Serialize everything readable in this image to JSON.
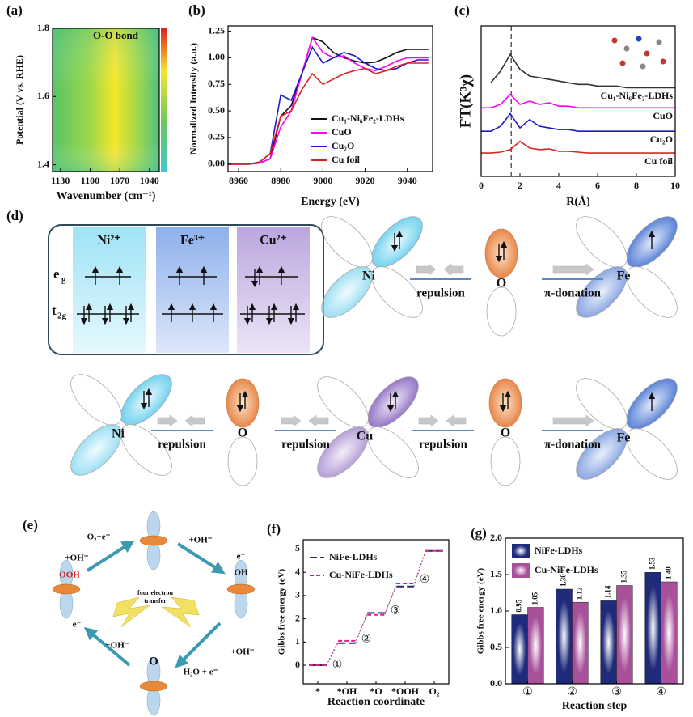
{
  "panel_labels": [
    "(a)",
    "(b)",
    "(c)",
    "(d)",
    "(e)",
    "(f)",
    "(g)"
  ],
  "chart_data": [
    {
      "type": "heatmap",
      "annotation": "O-O bond",
      "xlabel": "Wavenumber (cm⁻¹)",
      "ylabel": "Potential (V vs. RHE)",
      "xlim": [
        1138,
        1030
      ],
      "xticks": [
        1130,
        1100,
        1070,
        1040
      ],
      "ylim": [
        1.38,
        1.8
      ],
      "yticks": [
        1.4,
        1.6,
        1.8
      ]
    },
    {
      "type": "line",
      "xlabel": "Energy (eV)",
      "ylabel": "Normalized Intensity (a.u.)",
      "legend": "lower right",
      "xlim": [
        8955,
        9052
      ],
      "xticks": [
        8960,
        8980,
        9000,
        9020,
        9040
      ],
      "ylim": [
        -0.07,
        1.3
      ],
      "yticks": [
        {
          "value": 0,
          "label": "0.00"
        },
        0.25,
        {
          "value": 0.5,
          "label": "0.50"
        },
        0.75,
        {
          "value": 1,
          "label": "1.00"
        },
        1.25
      ],
      "x": [
        8955,
        8960,
        8965,
        8970,
        8975,
        8980,
        8985,
        8990,
        8995,
        9000,
        9005,
        9010,
        9015,
        9020,
        9025,
        9030,
        9035,
        9040,
        9045,
        9050
      ],
      "series": [
        {
          "name": "Cu₁-Ni₆Fe₂-LDHs",
          "color": "#111111",
          "values": [
            0,
            0,
            0,
            0.01,
            0.05,
            0.45,
            0.55,
            0.85,
            1.19,
            1.15,
            1.05,
            1.0,
            0.97,
            0.95,
            0.96,
            1.0,
            1.05,
            1.08,
            1.08,
            1.08
          ]
        },
        {
          "name": "CuO",
          "color": "#ff00ff",
          "values": [
            0,
            0,
            0,
            0.01,
            0.05,
            0.35,
            0.5,
            0.85,
            1.19,
            1.05,
            1.0,
            1.02,
            0.95,
            0.9,
            0.88,
            0.92,
            0.97,
            1.0,
            1.0,
            1.0
          ]
        },
        {
          "name": "Cu₂O",
          "color": "#1a1acc",
          "values": [
            0,
            0,
            0,
            0.02,
            0.1,
            0.65,
            0.6,
            0.85,
            1.1,
            0.95,
            1.0,
            1.05,
            1.02,
            0.95,
            0.9,
            0.88,
            0.9,
            0.95,
            0.98,
            0.98
          ]
        },
        {
          "name": "Cu foil",
          "color": "#e02020",
          "values": [
            0,
            0,
            0,
            0.02,
            0.1,
            0.45,
            0.5,
            0.7,
            0.85,
            0.75,
            0.8,
            0.85,
            0.88,
            0.9,
            0.85,
            0.88,
            0.92,
            0.95,
            0.95,
            0.95
          ]
        }
      ]
    },
    {
      "type": "line",
      "xlabel": "R(Å)",
      "ylabel": "FT(K³χ)",
      "legend": "inline",
      "xlim": [
        0,
        10
      ],
      "xticks": [
        0,
        2,
        4,
        6,
        8,
        10
      ],
      "ylim": [
        0,
        9
      ],
      "vlines": [
        1.55
      ],
      "x": [
        0,
        0.5,
        1,
        1.5,
        2,
        2.5,
        3,
        3.5,
        4,
        4.5,
        5,
        5.5,
        6,
        6.5,
        7,
        7.5,
        8,
        8.5,
        9,
        9.5,
        10
      ],
      "series": [
        {
          "name": "Cu₁-Ni₆Fe₂-LDHs",
          "color": "#333333",
          "values": [
            null,
            5.6,
            6.3,
            7.3,
            6.4,
            6.0,
            5.9,
            5.8,
            5.7,
            5.6,
            5.5,
            5.5,
            5.4,
            5.4,
            5.4,
            5.3,
            5.3,
            5.3,
            5.3,
            5.3,
            5.3
          ]
        },
        {
          "name": "CuO",
          "color": "#ff00ff",
          "values": [
            4.1,
            4.1,
            4.3,
            4.9,
            4.3,
            4.5,
            4.3,
            4.4,
            4.2,
            4.2,
            4.1,
            4.1,
            4.1,
            4.1,
            4.1,
            4.1,
            4.1,
            4.1,
            4.1,
            4.1,
            4.1
          ]
        },
        {
          "name": "Cu₂O",
          "color": "#1a1acc",
          "values": [
            2.7,
            2.7,
            3.0,
            3.75,
            2.9,
            3.4,
            3.0,
            2.9,
            2.8,
            2.8,
            2.7,
            2.7,
            2.7,
            2.7,
            2.7,
            2.7,
            2.7,
            2.7,
            2.7,
            2.7,
            2.7
          ]
        },
        {
          "name": "Cu foil",
          "color": "#e02020",
          "values": [
            1.4,
            1.4,
            1.45,
            1.6,
            2.1,
            1.7,
            1.6,
            1.65,
            1.5,
            1.5,
            1.45,
            1.4,
            1.4,
            1.4,
            1.4,
            1.4,
            1.4,
            1.4,
            1.4,
            1.4,
            1.4
          ]
        }
      ]
    },
    {
      "type": "step",
      "xlabel": "Reaction coordinate",
      "ylabel": "Gibbs free energy (eV)",
      "legend": "upper left",
      "categories": [
        "*",
        "*OH",
        "*O",
        "*OOH",
        "O₂"
      ],
      "ylim": [
        -0.8,
        5.4
      ],
      "yticks": [
        0,
        1,
        2,
        3,
        4,
        5
      ],
      "annotations": [
        "①",
        "②",
        "③",
        "④"
      ],
      "series": [
        {
          "name": "NiFe-LDHs",
          "color": "#1f2a7a",
          "values": [
            0,
            0.95,
            2.25,
            3.39,
            4.92
          ]
        },
        {
          "name": "Cu-NiFe-LDHs",
          "color": "#e0207a",
          "values": [
            0,
            1.05,
            2.17,
            3.52,
            4.92
          ]
        }
      ]
    },
    {
      "type": "bar",
      "xlabel": "Reaction step",
      "ylabel": "Gibbs free energy (eV)",
      "legend": "upper left",
      "categories": [
        "①",
        "②",
        "③",
        "④"
      ],
      "ylim": [
        0,
        2
      ],
      "yticks": [
        {
          "value": 0,
          "label": "0.0"
        },
        0.5,
        {
          "value": 1,
          "label": "1.0"
        },
        1.5,
        {
          "value": 2,
          "label": "2.0"
        }
      ],
      "series": [
        {
          "name": "NiFe-LDHs",
          "color": "#1f2a7a",
          "values": [
            0.95,
            1.3,
            1.14,
            1.53
          ],
          "value_labels": [
            "0.95",
            "1.30",
            "1.14",
            "1.53"
          ]
        },
        {
          "name": "Cu-NiFe-LDHs",
          "color": "#a8509a",
          "values": [
            1.05,
            1.12,
            1.35,
            1.4
          ],
          "value_labels": [
            "1.05",
            "1.12",
            "1.35",
            "1.40"
          ]
        }
      ]
    }
  ],
  "diagram_d": {
    "ions": [
      "Ni²⁺",
      "Fe³⁺",
      "Cu²⁺"
    ],
    "levels": [
      {
        "base": "e",
        "sub": "g"
      },
      {
        "base": "t",
        "sub": "2g"
      }
    ],
    "atoms_row1": [
      "Ni",
      "O",
      "Fe"
    ],
    "links_row1": [
      "repulsion",
      "π-donation"
    ],
    "atoms_row2": [
      "Ni",
      "O",
      "Cu",
      "O",
      "Fe"
    ],
    "links_row2": [
      "repulsion",
      "repulsion",
      "repulsion",
      "π-donation"
    ]
  },
  "diagram_e": {
    "center": "O",
    "center_text": [
      "four electron",
      "transfer"
    ],
    "labels": [
      "O₂+e⁻",
      "+OH⁻",
      "+OH⁻",
      "OOH",
      "e⁻",
      "OH",
      "e⁻",
      "+OH⁻",
      "+OH⁻",
      "H₂O + e⁻"
    ]
  }
}
